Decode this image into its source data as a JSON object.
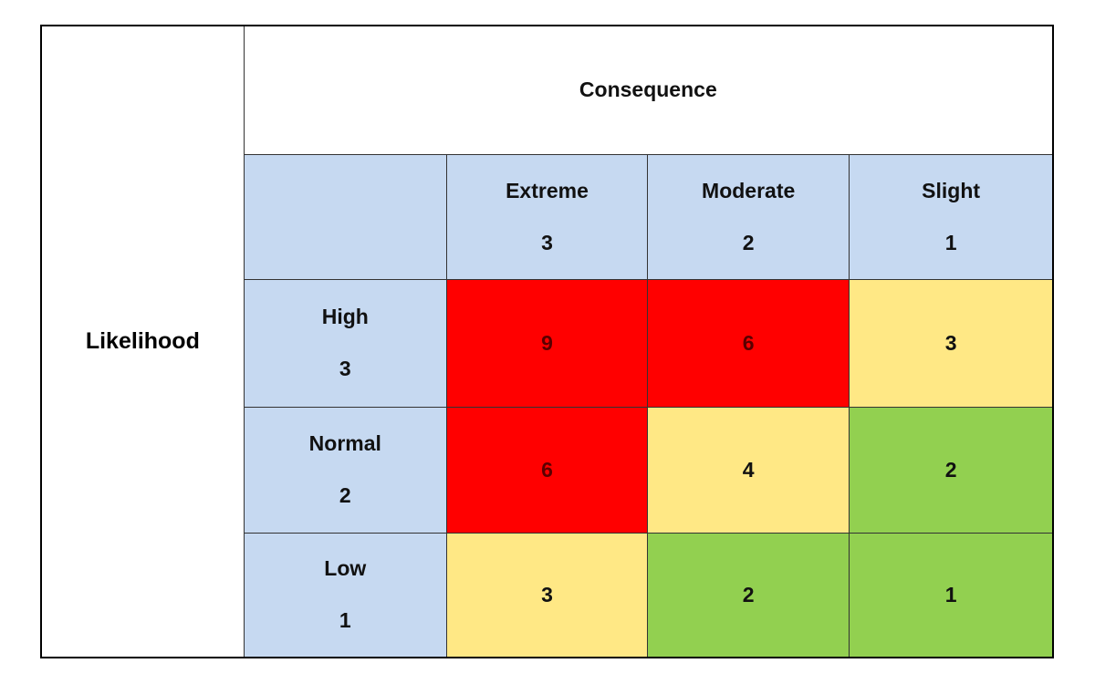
{
  "row_header": "Likelihood",
  "column_header": "Consequence",
  "columns": [
    {
      "label": "Extreme",
      "score": 3
    },
    {
      "label": "Moderate",
      "score": 2
    },
    {
      "label": "Slight",
      "score": 1
    }
  ],
  "rows": [
    {
      "label": "High",
      "score": 3,
      "cells": [
        9,
        6,
        3
      ]
    },
    {
      "label": "Normal",
      "score": 2,
      "cells": [
        6,
        4,
        2
      ]
    },
    {
      "label": "Low",
      "score": 1,
      "cells": [
        3,
        2,
        1
      ]
    }
  ]
}
